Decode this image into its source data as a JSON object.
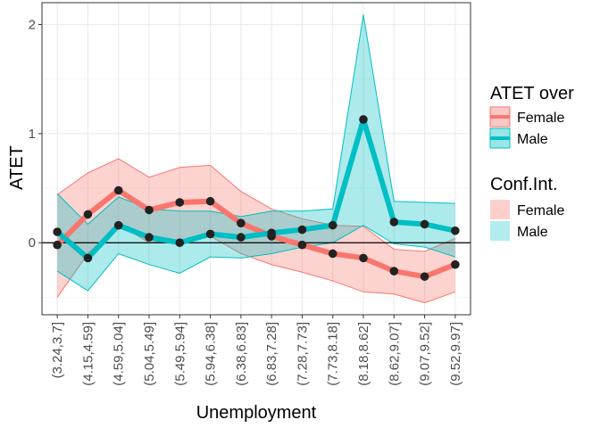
{
  "chart_data": {
    "type": "line",
    "title": "",
    "xlabel": "Unemployment",
    "ylabel": "ATET",
    "categories": [
      "(3.24,3.7]",
      "(4.15,4.59]",
      "(4.59,5.04]",
      "(5.04,5.49]",
      "(5.49,5.94]",
      "(5.94,6.38]",
      "(6.38,6.83]",
      "(6.83,7.28]",
      "(7.28,7.73]",
      "(7.73,8.18]",
      "(8.18,8.62]",
      "(8.62,9.07]",
      "(9.07,9.52]",
      "(9.52,9.97]"
    ],
    "yticks": [
      "0",
      "1",
      "2"
    ],
    "ylim": [
      -0.66,
      2.2
    ],
    "grid": true,
    "zero_line": true,
    "legend_placement": "right",
    "series": [
      {
        "name": "Female",
        "color": "#F8766D",
        "values": [
          -0.02,
          0.26,
          0.48,
          0.3,
          0.37,
          0.38,
          0.18,
          0.06,
          -0.02,
          -0.1,
          -0.14,
          -0.26,
          -0.31,
          -0.2
        ],
        "lower": [
          -0.5,
          -0.1,
          0.17,
          0.0,
          0.03,
          0.06,
          -0.1,
          -0.2,
          -0.27,
          -0.35,
          -0.45,
          -0.47,
          -0.55,
          -0.45
        ],
        "upper": [
          0.44,
          0.64,
          0.77,
          0.6,
          0.69,
          0.71,
          0.47,
          0.31,
          0.22,
          0.16,
          0.15,
          -0.06,
          -0.08,
          0.04
        ]
      },
      {
        "name": "Male",
        "color": "#00BFC4",
        "values": [
          0.1,
          -0.14,
          0.16,
          0.05,
          0.0,
          0.08,
          0.05,
          0.09,
          0.12,
          0.16,
          1.13,
          0.19,
          0.17,
          0.11
        ],
        "lower": [
          -0.26,
          -0.44,
          -0.1,
          -0.2,
          -0.28,
          -0.13,
          -0.14,
          -0.1,
          -0.04,
          0.0,
          0.16,
          -0.01,
          -0.04,
          -0.13
        ],
        "upper": [
          0.45,
          0.17,
          0.42,
          0.31,
          0.29,
          0.29,
          0.24,
          0.29,
          0.29,
          0.31,
          2.09,
          0.38,
          0.37,
          0.36
        ]
      }
    ]
  },
  "legend": {
    "title_line": "ATET over",
    "title_ci": "Conf.Int.",
    "line_items": [
      "Female",
      "Male"
    ],
    "ci_items": [
      "Female",
      "Male"
    ]
  }
}
